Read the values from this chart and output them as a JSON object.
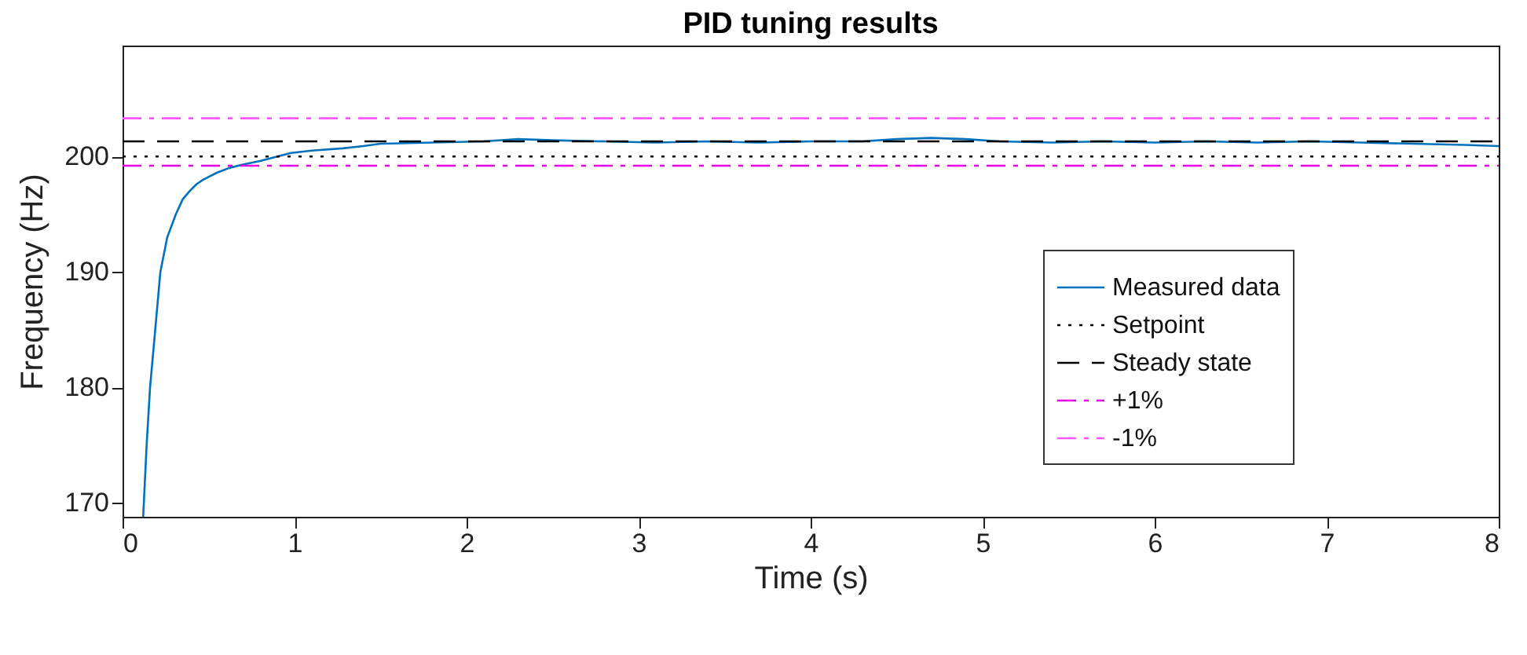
{
  "chart_data": {
    "type": "line",
    "title": "PID tuning results",
    "xlabel": "Time (s)",
    "ylabel": "Frequency (Hz)",
    "xlim": [
      0,
      8
    ],
    "ylim": [
      168.8,
      209.6
    ],
    "xticks": [
      0,
      1,
      2,
      3,
      4,
      5,
      6,
      7,
      8
    ],
    "yticks": [
      170,
      180,
      190,
      200
    ],
    "grid": false,
    "legend": "right",
    "marker": "none",
    "series": [
      {
        "name": "Measured data",
        "color": "#0072bd",
        "line_style": "solid",
        "x": [
          0.12,
          0.14,
          0.16,
          0.19,
          0.22,
          0.26,
          0.31,
          0.35,
          0.39,
          0.43,
          0.47,
          0.55,
          0.62,
          0.7,
          0.8,
          0.9,
          0.98,
          1.1,
          1.28,
          1.4,
          1.5,
          1.8,
          2.1,
          2.3,
          2.5,
          2.8,
          3.1,
          3.4,
          3.7,
          4.0,
          4.3,
          4.5,
          4.7,
          4.9,
          5.1,
          5.4,
          5.7,
          6.0,
          6.3,
          6.6,
          6.9,
          7.2,
          7.5,
          7.8,
          8.0
        ],
        "values": [
          168.8,
          175,
          180,
          185,
          190,
          193,
          195,
          196.3,
          197,
          197.6,
          198,
          198.6,
          199,
          199.3,
          199.6,
          200,
          200.3,
          200.5,
          200.7,
          200.9,
          201.1,
          201.2,
          201.3,
          201.5,
          201.4,
          201.3,
          201.2,
          201.3,
          201.2,
          201.3,
          201.3,
          201.5,
          201.6,
          201.5,
          201.3,
          201.2,
          201.3,
          201.2,
          201.3,
          201.2,
          201.3,
          201.2,
          201.1,
          201.0,
          200.9
        ]
      },
      {
        "name": "Setpoint",
        "color": "#000000",
        "line_style": "dotted",
        "x": [
          0,
          8
        ],
        "values": [
          200,
          200
        ]
      },
      {
        "name": "Steady state",
        "color": "#000000",
        "line_style": "dashed",
        "x": [
          0,
          8
        ],
        "values": [
          201.3,
          201.3
        ]
      },
      {
        "name": "+1%",
        "color": "#e600e6",
        "line_style": "dashdot",
        "x": [
          0,
          8
        ],
        "values": [
          199.2,
          199.2
        ]
      },
      {
        "name": "-1%",
        "color": "#ff55ff",
        "line_style": "dashdot",
        "x": [
          0,
          8
        ],
        "values": [
          203.3,
          203.3
        ]
      }
    ]
  }
}
